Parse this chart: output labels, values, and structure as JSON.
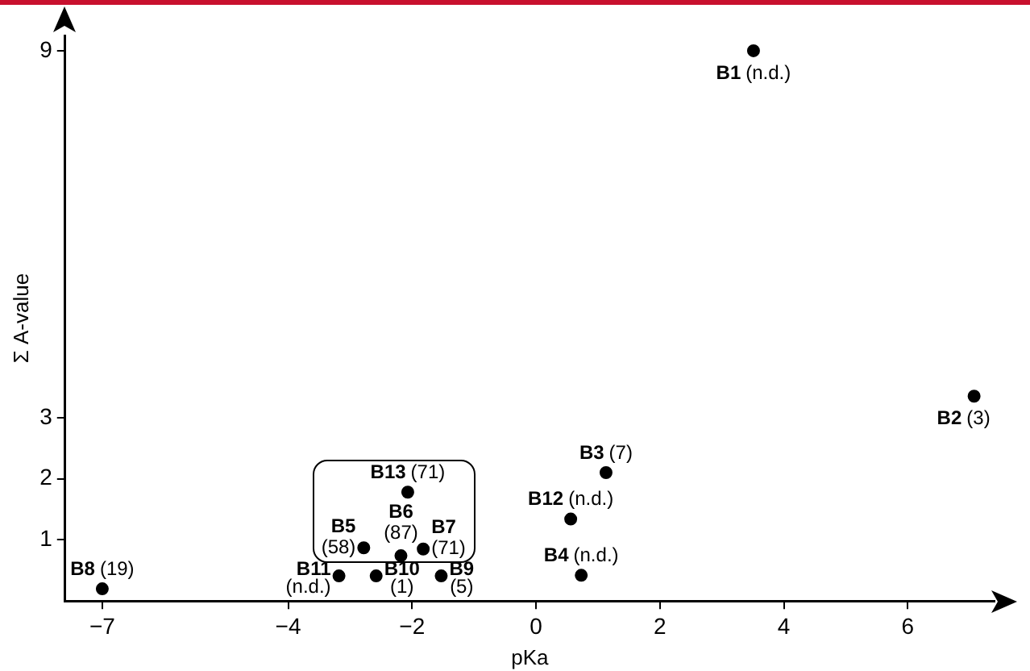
{
  "chart_data": {
    "type": "scatter",
    "xlabel": "pKa",
    "ylabel": "Σ A-value",
    "x": [
      3.51,
      7.07,
      1.13,
      0.73,
      -2.78,
      -2.18,
      -1.82,
      -7,
      -1.53,
      -2.58,
      -3.18,
      0.56,
      -2.07
    ],
    "values": [
      9.0,
      3.35,
      2.1,
      0.42,
      0.87,
      0.74,
      0.85,
      0.2,
      0.41,
      0.41,
      0.41,
      1.34,
      1.78
    ],
    "color": "#000000",
    "marker": "circle",
    "grid": false,
    "legend": false,
    "xlim": [
      -7.6,
      7.4
    ],
    "xticks": [
      -7,
      -4,
      -2,
      0,
      2,
      4,
      6
    ],
    "ylim": [
      0,
      9.25
    ],
    "yticks": [
      1,
      2,
      3,
      9
    ],
    "annotations": [
      {
        "text": "B1 (n.d.)",
        "x": 3.51,
        "y": 9.0
      },
      {
        "text": "B2 (3)",
        "x": 7.07,
        "y": 3.35
      },
      {
        "text": "B3 (7)",
        "x": 1.13,
        "y": 2.1
      },
      {
        "text": "B4 (n.d.)",
        "x": 0.73,
        "y": 0.42
      },
      {
        "text": "B5 (58)",
        "x": -2.78,
        "y": 0.87
      },
      {
        "text": "B6 (87)",
        "x": -2.18,
        "y": 0.74
      },
      {
        "text": "B7 (71)",
        "x": -1.82,
        "y": 0.85
      },
      {
        "text": "B8 (19)",
        "x": -7,
        "y": 0.2
      },
      {
        "text": "B9 (5)",
        "x": -1.53,
        "y": 0.41
      },
      {
        "text": "B10 (1)",
        "x": -2.58,
        "y": 0.41
      },
      {
        "text": "B11 (n.d.)",
        "x": -3.18,
        "y": 0.41
      },
      {
        "text": "B12 (n.d.)",
        "x": 0.56,
        "y": 1.34
      },
      {
        "text": "B13 (71)",
        "x": -2.07,
        "y": 1.78
      }
    ]
  }
}
